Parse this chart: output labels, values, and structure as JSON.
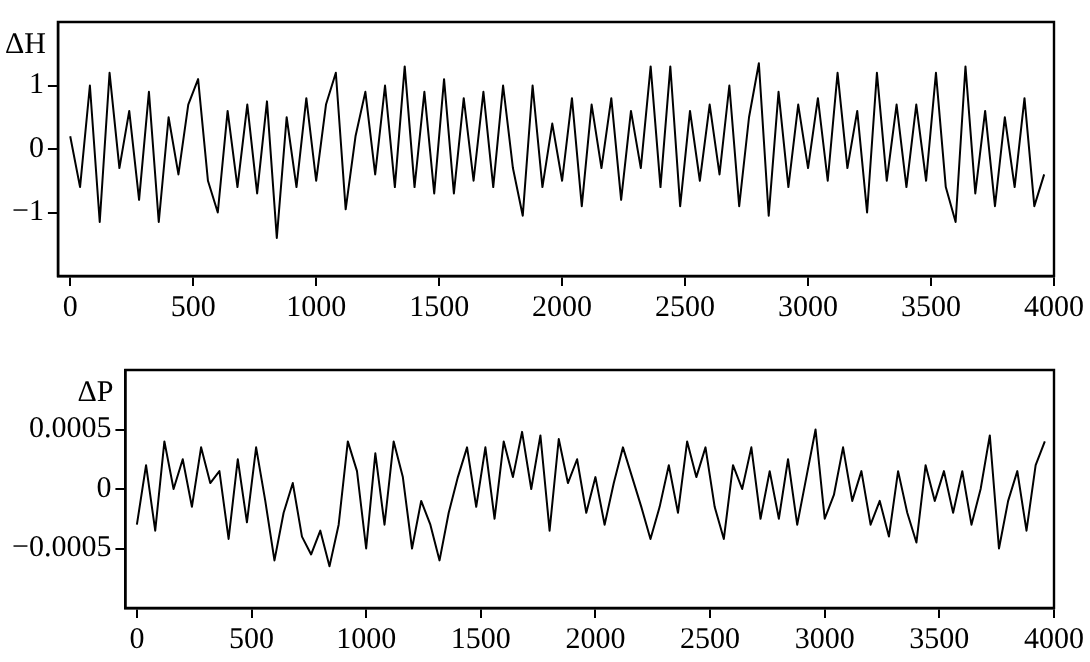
{
  "chart_data": [
    {
      "type": "line",
      "ylabel": "ΔH",
      "xlim": [
        -50,
        4000
      ],
      "xticks": [
        0,
        500,
        1000,
        1500,
        2000,
        2500,
        3000,
        3500,
        4000
      ],
      "ylim": [
        -2,
        2
      ],
      "yticks": [
        {
          "value": -1,
          "label": "−1"
        },
        0,
        1
      ],
      "grid": false,
      "legend": false,
      "marker": "none",
      "x": [
        0,
        40,
        80,
        120,
        160,
        200,
        240,
        280,
        320,
        360,
        400,
        440,
        480,
        520,
        560,
        600,
        640,
        680,
        720,
        760,
        800,
        840,
        880,
        920,
        960,
        1000,
        1040,
        1080,
        1120,
        1160,
        1200,
        1240,
        1280,
        1320,
        1360,
        1400,
        1440,
        1480,
        1520,
        1560,
        1600,
        1640,
        1680,
        1720,
        1760,
        1800,
        1840,
        1880,
        1920,
        1960,
        2000,
        2040,
        2080,
        2120,
        2160,
        2200,
        2240,
        2280,
        2320,
        2360,
        2400,
        2440,
        2480,
        2520,
        2560,
        2600,
        2640,
        2680,
        2720,
        2760,
        2800,
        2840,
        2880,
        2920,
        2960,
        3000,
        3040,
        3080,
        3120,
        3160,
        3200,
        3240,
        3280,
        3320,
        3360,
        3400,
        3440,
        3480,
        3520,
        3560,
        3600,
        3640,
        3680,
        3720,
        3760,
        3800,
        3840,
        3880,
        3920,
        3960
      ],
      "series": [
        {
          "color": "#000000",
          "values": [
            0.2,
            -0.6,
            1.0,
            -1.15,
            1.2,
            -0.3,
            0.6,
            -0.8,
            0.9,
            -1.15,
            0.5,
            -0.4,
            0.7,
            1.1,
            -0.5,
            -1.0,
            0.6,
            -0.6,
            0.7,
            -0.7,
            0.75,
            -1.4,
            0.5,
            -0.6,
            0.8,
            -0.5,
            0.7,
            1.2,
            -0.95,
            0.2,
            0.9,
            -0.4,
            1.0,
            -0.6,
            1.3,
            -0.6,
            0.9,
            -0.7,
            1.1,
            -0.7,
            0.8,
            -0.5,
            0.9,
            -0.6,
            1.0,
            -0.3,
            -1.05,
            1.0,
            -0.6,
            0.4,
            -0.5,
            0.8,
            -0.9,
            0.7,
            -0.3,
            0.8,
            -0.8,
            0.6,
            -0.3,
            1.3,
            -0.6,
            1.3,
            -0.9,
            0.6,
            -0.5,
            0.7,
            -0.4,
            1.0,
            -0.9,
            0.5,
            1.35,
            -1.05,
            0.9,
            -0.6,
            0.7,
            -0.3,
            0.8,
            -0.5,
            1.2,
            -0.3,
            0.6,
            -1.0,
            1.2,
            -0.5,
            0.7,
            -0.6,
            0.7,
            -0.5,
            1.2,
            -0.6,
            -1.15,
            1.3,
            -0.7,
            0.6,
            -0.9,
            0.5,
            -0.6,
            0.8,
            -0.9,
            -0.4
          ]
        }
      ]
    },
    {
      "type": "line",
      "ylabel": "ΔP",
      "xlim": [
        -50,
        4000
      ],
      "xticks": [
        0,
        500,
        1000,
        1500,
        2000,
        2500,
        3000,
        3500,
        4000
      ],
      "ylim": [
        -0.001,
        0.001
      ],
      "yticks": [
        {
          "value": -0.0005,
          "label": "−0.0005"
        },
        0,
        0.0005
      ],
      "grid": false,
      "legend": false,
      "marker": "none",
      "x": [
        0,
        40,
        80,
        120,
        160,
        200,
        240,
        280,
        320,
        360,
        400,
        440,
        480,
        520,
        560,
        600,
        640,
        680,
        720,
        760,
        800,
        840,
        880,
        920,
        960,
        1000,
        1040,
        1080,
        1120,
        1160,
        1200,
        1240,
        1280,
        1320,
        1360,
        1400,
        1440,
        1480,
        1520,
        1560,
        1600,
        1640,
        1680,
        1720,
        1760,
        1800,
        1840,
        1880,
        1920,
        1960,
        2000,
        2040,
        2080,
        2120,
        2160,
        2200,
        2240,
        2280,
        2320,
        2360,
        2400,
        2440,
        2480,
        2520,
        2560,
        2600,
        2640,
        2680,
        2720,
        2760,
        2800,
        2840,
        2880,
        2920,
        2960,
        3000,
        3040,
        3080,
        3120,
        3160,
        3200,
        3240,
        3280,
        3320,
        3360,
        3400,
        3440,
        3480,
        3520,
        3560,
        3600,
        3640,
        3680,
        3720,
        3760,
        3800,
        3840,
        3880,
        3920,
        3960
      ],
      "series": [
        {
          "color": "#000000",
          "values": [
            -0.0003,
            0.0002,
            -0.00035,
            0.0004,
            0,
            0.00025,
            -0.00015,
            0.00035,
            5e-05,
            0.00015,
            -0.00042,
            0.00025,
            -0.00028,
            0.00035,
            -0.0001,
            -0.0006,
            -0.0002,
            5e-05,
            -0.0004,
            -0.00055,
            -0.00035,
            -0.00065,
            -0.0003,
            0.0004,
            0.00015,
            -0.0005,
            0.0003,
            -0.0003,
            0.0004,
            0.0001,
            -0.0005,
            -0.0001,
            -0.0003,
            -0.0006,
            -0.0002,
            0.0001,
            0.00035,
            -0.00015,
            0.00035,
            -0.00025,
            0.0004,
            0.0001,
            0.00048,
            0,
            0.00045,
            -0.00035,
            0.00042,
            5e-05,
            0.00025,
            -0.0002,
            0.0001,
            -0.0003,
            5e-05,
            0.00035,
            0.0001,
            -0.00015,
            -0.00042,
            -0.00015,
            0.0002,
            -0.0002,
            0.0004,
            0.0001,
            0.00035,
            -0.00015,
            -0.00042,
            0.0002,
            0,
            0.00035,
            -0.00025,
            0.00015,
            -0.00025,
            0.00025,
            -0.0003,
            0.0001,
            0.0005,
            -0.00025,
            -5e-05,
            0.00035,
            -0.0001,
            0.00015,
            -0.0003,
            -0.0001,
            -0.0004,
            0.00015,
            -0.0002,
            -0.00045,
            0.0002,
            -0.0001,
            0.00015,
            -0.0002,
            0.00015,
            -0.0003,
            0,
            0.00045,
            -0.0005,
            -0.0001,
            0.00015,
            -0.00035,
            0.0002,
            0.0004
          ]
        }
      ]
    }
  ]
}
